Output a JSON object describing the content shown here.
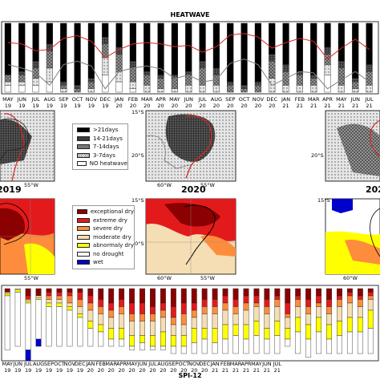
{
  "chart_data": [
    {
      "type": "bar",
      "panel": "heatwave-timeseries",
      "title": "HEATWAVE",
      "months": [
        "MAY",
        "JUN",
        "JUL",
        "AUG",
        "SEP",
        "OCT",
        "NOV",
        "DEC",
        "JAN",
        "FEB",
        "MAR",
        "APR",
        "MAY",
        "JUN",
        "JUL",
        "AUG",
        "SEP",
        "OCT",
        "NOV",
        "DEC",
        "JAN",
        "FEB",
        "MAR",
        "APR",
        "MAY",
        "JUN",
        "JUL"
      ],
      "years": [
        "19",
        "19",
        "19",
        "19",
        "19",
        "19",
        "19",
        "19",
        "20",
        "20",
        "20",
        "20",
        "20",
        "20",
        "20",
        "20",
        "20",
        "20",
        "20",
        "20",
        "21",
        "21",
        "21",
        "21",
        "21",
        "21",
        "21"
      ],
      "categories_order": [
        ">21days",
        "14-21days",
        "7-14days",
        "3-7days",
        "NO heatwave"
      ],
      "stacks": [
        [
          0.75,
          0.0,
          0.1,
          0.05,
          0.1
        ],
        [
          0.7,
          0.05,
          0.1,
          0.05,
          0.1
        ],
        [
          0.55,
          0.1,
          0.15,
          0.1,
          0.1
        ],
        [
          0.3,
          0.1,
          0.25,
          0.2,
          0.15
        ],
        [
          0.85,
          0.05,
          0.05,
          0.05,
          0.0
        ],
        [
          0.9,
          0.05,
          0.05,
          0.0,
          0.0
        ],
        [
          0.8,
          0.05,
          0.1,
          0.05,
          0.0
        ],
        [
          0.2,
          0.1,
          0.2,
          0.25,
          0.25
        ],
        [
          0.35,
          0.1,
          0.25,
          0.15,
          0.15
        ],
        [
          0.55,
          0.1,
          0.2,
          0.1,
          0.05
        ],
        [
          0.7,
          0.05,
          0.15,
          0.1,
          0.0
        ],
        [
          0.75,
          0.05,
          0.15,
          0.05,
          0.0
        ],
        [
          0.75,
          0.05,
          0.15,
          0.05,
          0.0
        ],
        [
          0.7,
          0.05,
          0.15,
          0.1,
          0.0
        ],
        [
          0.55,
          0.1,
          0.25,
          0.1,
          0.0
        ],
        [
          0.65,
          0.1,
          0.15,
          0.1,
          0.0
        ],
        [
          0.85,
          0.05,
          0.1,
          0.0,
          0.0
        ],
        [
          0.9,
          0.05,
          0.05,
          0.0,
          0.0
        ],
        [
          0.85,
          0.05,
          0.1,
          0.0,
          0.0
        ],
        [
          0.45,
          0.1,
          0.25,
          0.2,
          0.0
        ],
        [
          0.6,
          0.1,
          0.2,
          0.1,
          0.0
        ],
        [
          0.7,
          0.05,
          0.15,
          0.1,
          0.0
        ],
        [
          0.75,
          0.05,
          0.1,
          0.1,
          0.0
        ],
        [
          0.35,
          0.1,
          0.15,
          0.15,
          0.25
        ],
        [
          0.55,
          0.1,
          0.25,
          0.1,
          0.0
        ],
        [
          0.8,
          0.05,
          0.1,
          0.05,
          0.0
        ],
        [
          0.6,
          0.1,
          0.2,
          0.1,
          0.0
        ]
      ],
      "red_line": [
        0.72,
        0.7,
        0.6,
        0.62,
        0.78,
        0.82,
        0.74,
        0.5,
        0.62,
        0.7,
        0.72,
        0.7,
        0.66,
        0.68,
        0.58,
        0.66,
        0.83,
        0.85,
        0.8,
        0.64,
        0.72,
        0.78,
        0.74,
        0.48,
        0.64,
        0.77,
        0.62
      ],
      "gray_line": [
        0.4,
        0.35,
        0.28,
        0.1,
        0.4,
        0.45,
        0.38,
        0.05,
        0.3,
        0.35,
        0.38,
        0.34,
        0.2,
        0.25,
        0.15,
        0.18,
        0.42,
        0.48,
        0.4,
        0.1,
        0.2,
        0.3,
        0.28,
        0.05,
        0.18,
        0.3,
        0.15
      ],
      "colors": {
        "red_line": "#d62728",
        "gray_line": "#7f7f7f"
      }
    },
    {
      "type": "bar",
      "panel": "spi-timeseries",
      "title": "SPI-12",
      "categories_order": [
        "exceptional dry",
        "extreme dry",
        "severe dry",
        "moderate dry",
        "abnormaly dry",
        "no drought",
        "wet"
      ],
      "stacks": [
        [
          0.05,
          0.0,
          0.0,
          0.02,
          0.03,
          0.75,
          0.0
        ],
        [
          0.0,
          0.0,
          0.0,
          0.02,
          0.03,
          0.75,
          0.0
        ],
        [
          0.1,
          0.05,
          0.0,
          0.02,
          0.03,
          0.65,
          0.15
        ],
        [
          0.1,
          0.0,
          0.0,
          0.03,
          0.02,
          0.55,
          0.1
        ],
        [
          0.05,
          0.05,
          0.05,
          0.05,
          0.05,
          0.55,
          0.0
        ],
        [
          0.05,
          0.05,
          0.05,
          0.05,
          0.05,
          0.55,
          0.0
        ],
        [
          0.05,
          0.05,
          0.1,
          0.05,
          0.05,
          0.5,
          0.0
        ],
        [
          0.05,
          0.1,
          0.1,
          0.1,
          0.05,
          0.4,
          0.0
        ],
        [
          0.1,
          0.1,
          0.1,
          0.15,
          0.1,
          0.25,
          0.0
        ],
        [
          0.15,
          0.1,
          0.1,
          0.15,
          0.1,
          0.2,
          0.0
        ],
        [
          0.2,
          0.1,
          0.1,
          0.15,
          0.15,
          0.1,
          0.0
        ],
        [
          0.15,
          0.1,
          0.1,
          0.2,
          0.15,
          0.1,
          0.0
        ],
        [
          0.2,
          0.15,
          0.1,
          0.2,
          0.15,
          0.05,
          0.0
        ],
        [
          0.2,
          0.15,
          0.1,
          0.2,
          0.1,
          0.1,
          0.0
        ],
        [
          0.25,
          0.1,
          0.1,
          0.2,
          0.15,
          0.05,
          0.0
        ],
        [
          0.2,
          0.1,
          0.1,
          0.2,
          0.2,
          0.05,
          0.0
        ],
        [
          0.25,
          0.15,
          0.1,
          0.15,
          0.15,
          0.1,
          0.0
        ],
        [
          0.2,
          0.15,
          0.15,
          0.15,
          0.15,
          0.1,
          0.0
        ],
        [
          0.2,
          0.1,
          0.1,
          0.15,
          0.2,
          0.15,
          0.0
        ],
        [
          0.15,
          0.1,
          0.1,
          0.2,
          0.15,
          0.2,
          0.0
        ],
        [
          0.15,
          0.1,
          0.1,
          0.2,
          0.2,
          0.15,
          0.0
        ],
        [
          0.1,
          0.1,
          0.1,
          0.2,
          0.2,
          0.2,
          0.0
        ],
        [
          0.15,
          0.1,
          0.1,
          0.15,
          0.15,
          0.25,
          0.0
        ],
        [
          0.1,
          0.1,
          0.1,
          0.2,
          0.2,
          0.2,
          0.0
        ],
        [
          0.1,
          0.1,
          0.05,
          0.2,
          0.2,
          0.25,
          0.0
        ],
        [
          0.15,
          0.1,
          0.1,
          0.2,
          0.15,
          0.2,
          0.0
        ],
        [
          0.1,
          0.05,
          0.1,
          0.2,
          0.2,
          0.25,
          0.0
        ],
        [
          0.2,
          0.15,
          0.05,
          0.15,
          0.15,
          0.1,
          0.0
        ],
        [
          0.1,
          0.05,
          0.1,
          0.15,
          0.2,
          0.3,
          0.0
        ],
        [
          0.15,
          0.1,
          0.1,
          0.15,
          0.2,
          0.25,
          0.0
        ],
        [
          0.1,
          0.1,
          0.05,
          0.15,
          0.2,
          0.3,
          0.0
        ],
        [
          0.15,
          0.1,
          0.1,
          0.15,
          0.2,
          0.2,
          0.0
        ],
        [
          0.1,
          0.05,
          0.1,
          0.2,
          0.2,
          0.25,
          0.0
        ],
        [
          0.05,
          0.05,
          0.1,
          0.2,
          0.2,
          0.3,
          0.0
        ],
        [
          0.1,
          0.05,
          0.1,
          0.15,
          0.2,
          0.3,
          0.0
        ],
        [
          0.05,
          0.05,
          0.05,
          0.15,
          0.25,
          0.35,
          0.0
        ]
      ],
      "colors": {
        "exceptional dry": "#8b0000",
        "extreme dry": "#e31a1c",
        "severe dry": "#fd8d3c",
        "moderate dry": "#f5deb3",
        "abnormaly dry": "#ffff00",
        "no drought": "#ffffff",
        "wet": "#0000cd"
      }
    }
  ],
  "heatwave_legend": [
    {
      "label": ">21days",
      "fill": "#000000"
    },
    {
      "label": "14-21days",
      "fill": "#3a3a3a"
    },
    {
      "label": "7-14days",
      "fill": "#777777"
    },
    {
      "label": "3-7days",
      "fill": "#bdbdbd"
    },
    {
      "label": "NO heatwave",
      "fill": "#ffffff"
    }
  ],
  "spi_legend": [
    {
      "label": "exceptional dry",
      "fill": "#8b0000"
    },
    {
      "label": "extreme dry",
      "fill": "#e31a1c"
    },
    {
      "label": "severe dry",
      "fill": "#fd8d3c"
    },
    {
      "label": "moderate dry",
      "fill": "#f5deb3"
    },
    {
      "label": "abnormaly dry",
      "fill": "#ffff00"
    },
    {
      "label": "no drought",
      "fill": "#ffffff"
    },
    {
      "label": "wet",
      "fill": "#0000cd"
    }
  ],
  "maps": {
    "year_labels": [
      "2019",
      "2020",
      "202"
    ],
    "lat_labels": {
      "s15": "15°S",
      "s20": "20°S"
    },
    "lon_labels": {
      "w55": "55°W",
      "w60": "60°W"
    }
  }
}
